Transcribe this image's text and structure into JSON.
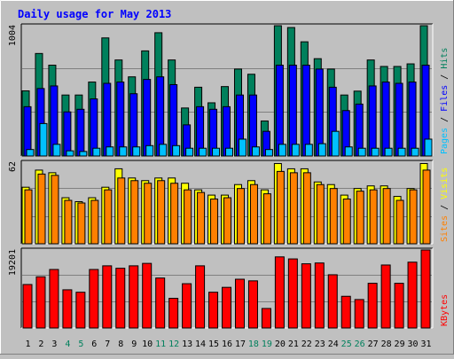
{
  "title": "Daily usage for May 2013",
  "colors": {
    "background": "#c0c0c0",
    "title": "#0000ff",
    "hits": "#00805c",
    "files": "#0000ff",
    "pages": "#00c0ff",
    "visits": "#ffff00",
    "sites": "#ff8000",
    "kbytes": "#ff0000",
    "weekend_label": "#00805c",
    "gridline": "#808080"
  },
  "chart_data": [
    {
      "type": "bar",
      "panel": "hits-files-pages",
      "y_max_label": "1004",
      "y_mid_label": "",
      "ylim": [
        0,
        1004
      ],
      "legend": {
        "pages": "Pages",
        "files": "Files",
        "hits": "Hits",
        "sep": " / "
      },
      "categories": [
        "1",
        "2",
        "3",
        "4",
        "5",
        "6",
        "7",
        "8",
        "9",
        "10",
        "11",
        "12",
        "13",
        "14",
        "15",
        "16",
        "17",
        "18",
        "19",
        "20",
        "21",
        "22",
        "23",
        "24",
        "25",
        "26",
        "27",
        "28",
        "29",
        "30",
        "31"
      ],
      "series": [
        {
          "name": "Hits",
          "values": [
            502,
            790,
            700,
            470,
            470,
            570,
            910,
            740,
            610,
            810,
            950,
            740,
            370,
            530,
            410,
            535,
            670,
            630,
            270,
            1004,
            990,
            880,
            750,
            670,
            470,
            500,
            740,
            690,
            690,
            710,
            1004
          ]
        },
        {
          "name": "Files",
          "values": [
            380,
            520,
            540,
            340,
            360,
            440,
            560,
            570,
            480,
            590,
            610,
            550,
            240,
            380,
            360,
            380,
            470,
            470,
            190,
            700,
            700,
            700,
            670,
            530,
            350,
            400,
            540,
            570,
            560,
            570,
            700
          ]
        },
        {
          "name": "Pages",
          "values": [
            50,
            250,
            90,
            40,
            35,
            60,
            70,
            70,
            70,
            80,
            90,
            80,
            60,
            60,
            60,
            60,
            130,
            70,
            50,
            90,
            90,
            90,
            95,
            190,
            70,
            60,
            60,
            60,
            60,
            60,
            130
          ]
        }
      ]
    },
    {
      "type": "bar",
      "panel": "visits-sites",
      "y_max_label": "62",
      "ylim": [
        0,
        62
      ],
      "legend": {
        "sites": "Sites",
        "visits": "Visits",
        "sep": " / "
      },
      "categories": [
        "1",
        "2",
        "3",
        "4",
        "5",
        "6",
        "7",
        "8",
        "9",
        "10",
        "11",
        "12",
        "13",
        "14",
        "15",
        "16",
        "17",
        "18",
        "19",
        "20",
        "21",
        "22",
        "23",
        "24",
        "25",
        "26",
        "27",
        "28",
        "29",
        "30",
        "31"
      ],
      "series": [
        {
          "name": "Visits",
          "values": [
            43,
            56,
            54,
            35,
            32,
            35,
            43,
            57,
            50,
            48,
            50,
            50,
            46,
            41,
            37,
            37,
            45,
            48,
            41,
            61,
            57,
            57,
            47,
            45,
            37,
            42,
            44,
            44,
            36,
            42,
            61
          ]
        },
        {
          "name": "Sites",
          "values": [
            41,
            53,
            52,
            33,
            31,
            33,
            41,
            50,
            48,
            46,
            48,
            46,
            41,
            39,
            34,
            35,
            42,
            45,
            38,
            55,
            54,
            54,
            45,
            42,
            34,
            40,
            41,
            42,
            33,
            41,
            56
          ]
        }
      ]
    },
    {
      "type": "bar",
      "panel": "kbytes",
      "y_max_label": "19201",
      "ylim": [
        0,
        19201
      ],
      "legend": {
        "kbytes": "KBytes"
      },
      "categories": [
        "1",
        "2",
        "3",
        "4",
        "5",
        "6",
        "7",
        "8",
        "9",
        "10",
        "11",
        "12",
        "13",
        "14",
        "15",
        "16",
        "17",
        "18",
        "19",
        "20",
        "21",
        "22",
        "23",
        "24",
        "25",
        "26",
        "27",
        "28",
        "29",
        "30",
        "31"
      ],
      "series": [
        {
          "name": "KBytes",
          "values": [
            10700,
            12600,
            14400,
            9400,
            8800,
            14400,
            15300,
            14700,
            15300,
            15900,
            12300,
            7300,
            10900,
            15300,
            8800,
            10000,
            12000,
            11600,
            4800,
            17500,
            17000,
            15800,
            16000,
            13100,
            7800,
            7000,
            11000,
            15500,
            11000,
            16200,
            19201
          ]
        }
      ]
    }
  ],
  "x_axis": {
    "labels": [
      "1",
      "2",
      "3",
      "4",
      "5",
      "6",
      "7",
      "8",
      "9",
      "10",
      "11",
      "12",
      "13",
      "14",
      "15",
      "16",
      "17",
      "18",
      "19",
      "20",
      "21",
      "22",
      "23",
      "24",
      "25",
      "26",
      "27",
      "28",
      "29",
      "30",
      "31"
    ],
    "weekend_days": [
      4,
      5,
      11,
      12,
      18,
      19,
      25,
      26
    ]
  }
}
